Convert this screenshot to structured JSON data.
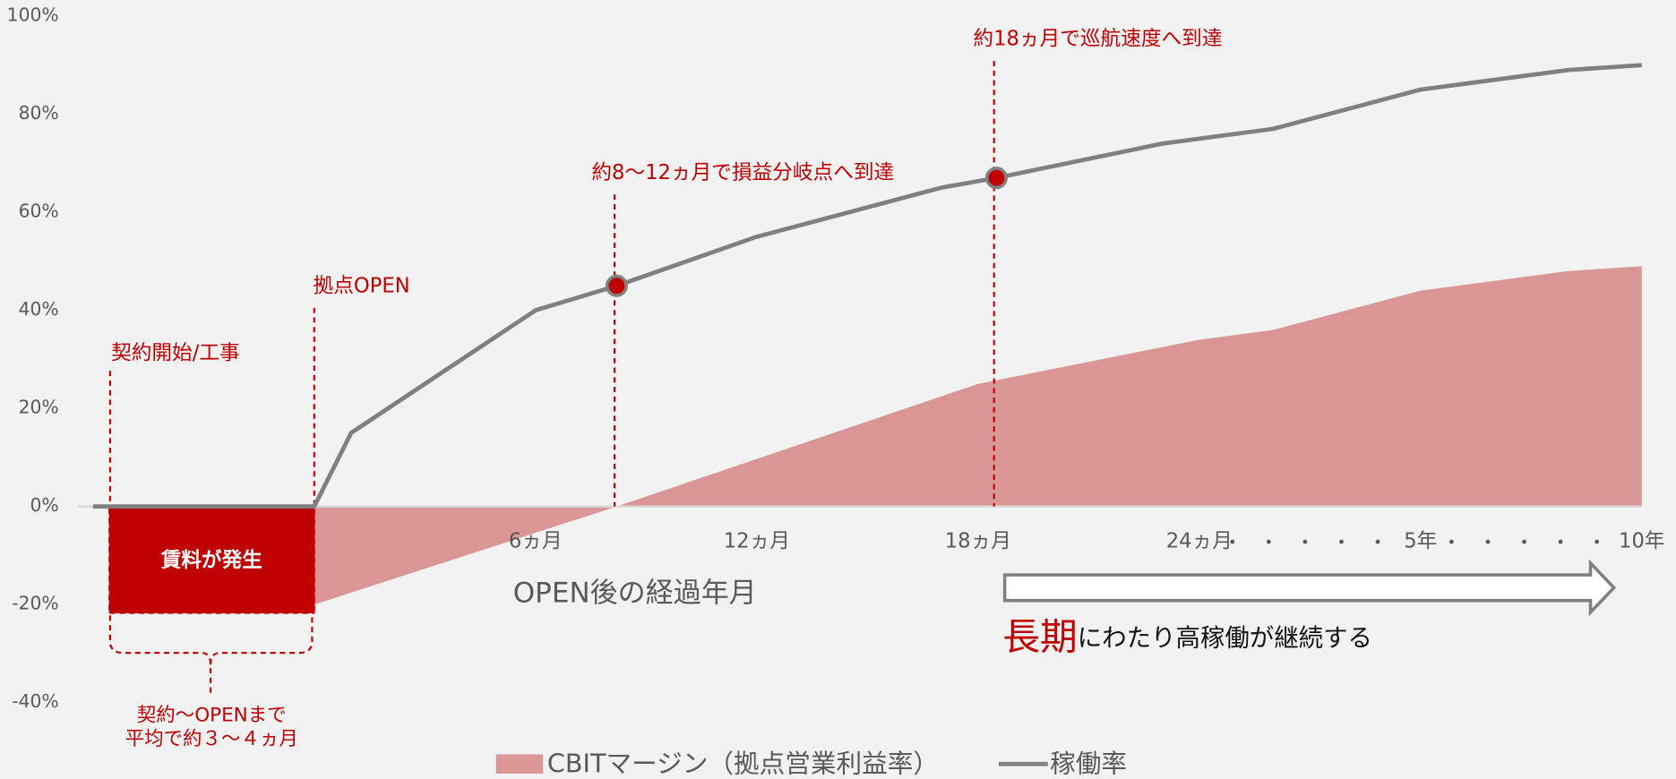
{
  "chart_data": {
    "type": "area-line",
    "xlabel": "OPEN後の経過年月",
    "xlim": [
      -6,
      36
    ],
    "xticks": [
      {
        "value": 6,
        "label": "6ヵ月"
      },
      {
        "value": 12,
        "label": "12ヵ月"
      },
      {
        "value": 18,
        "label": "18ヵ月"
      },
      {
        "value": 24,
        "label": "24ヵ月"
      },
      {
        "value": 30,
        "label": "5年"
      },
      {
        "value": 36,
        "label": "10年"
      }
    ],
    "ylim": [
      -40,
      100
    ],
    "yticks": [
      {
        "value": -40,
        "label": "-40%"
      },
      {
        "value": -20,
        "label": "-20%"
      },
      {
        "value": 0,
        "label": "0%"
      },
      {
        "value": 20,
        "label": "20%"
      },
      {
        "value": 40,
        "label": "40%"
      },
      {
        "value": 60,
        "label": "60%"
      },
      {
        "value": 80,
        "label": "80%"
      },
      {
        "value": 100,
        "label": "100%"
      }
    ],
    "grid": false,
    "series": [
      {
        "name": "CBITマージン（拠点営業利益率）",
        "kind": "area",
        "color": "#d99694",
        "x": [
          0,
          8.2,
          18,
          24,
          26,
          30,
          34,
          36
        ],
        "values": [
          -20,
          0,
          25,
          34,
          36,
          44,
          48,
          49
        ]
      },
      {
        "name": "稼働率",
        "kind": "line",
        "color": "#808080",
        "x": [
          -6,
          0,
          1,
          6,
          8.2,
          12,
          17,
          18.5,
          23,
          26,
          30,
          34,
          36
        ],
        "values": [
          0,
          0,
          15,
          40,
          45,
          55,
          65,
          67,
          74,
          77,
          85,
          89,
          90
        ],
        "highlight_points": [
          4,
          7
        ]
      }
    ],
    "annotations": {
      "cruise": "約18ヵ月で巡航速度へ到達",
      "breakeven": "約8〜12ヵ月で損益分岐点へ到達",
      "open": "拠点OPEN",
      "contract": "契約開始/工事",
      "rent": "賃料が発生",
      "period_1": "契約〜OPENまで",
      "period_2": "平均で約３〜４ヵ月",
      "long_1": "長期",
      "long_2": "にわたり高稼働が継続する"
    }
  }
}
